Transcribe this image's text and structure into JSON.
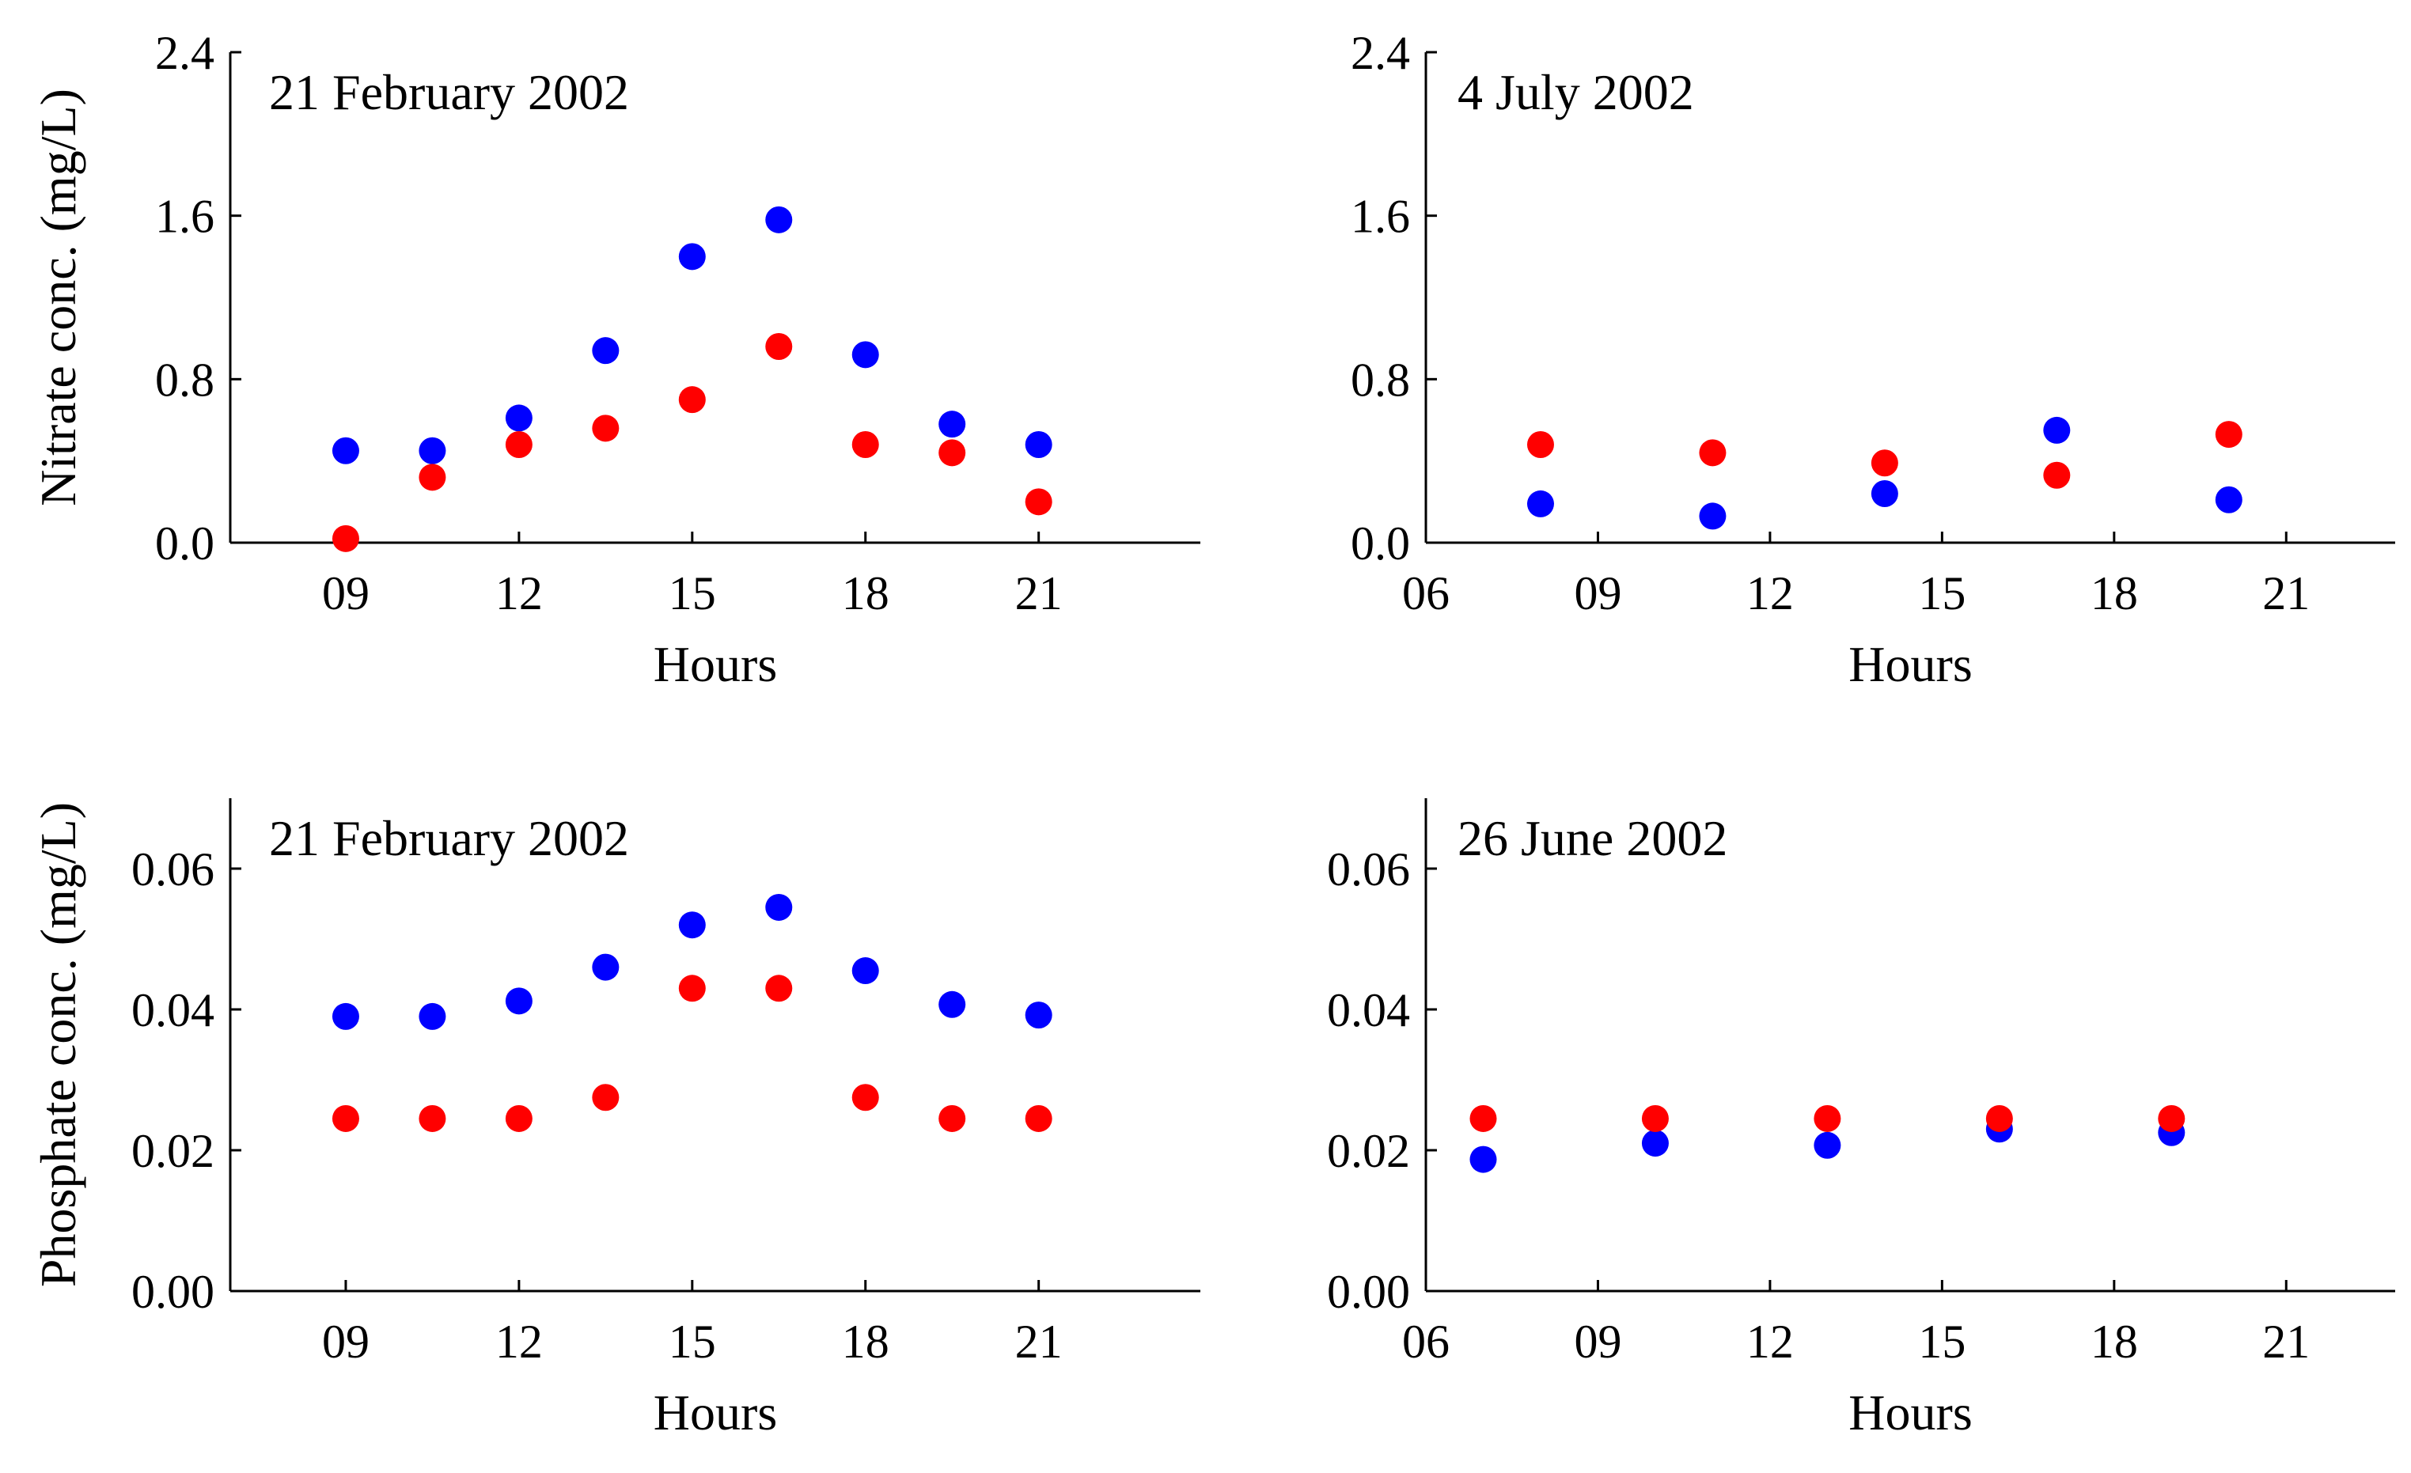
{
  "colors": {
    "series_a": "#0000ff",
    "series_b": "#ff0000"
  },
  "chart_data": [
    {
      "type": "scatter",
      "title": "21 February 2002",
      "xlabel": "Hours",
      "ylabel": "Nitrate conc. (mg/L)",
      "xlim": [
        7,
        23.8
      ],
      "ylim": [
        0,
        2.4
      ],
      "xticks": [
        9,
        12,
        15,
        18,
        21
      ],
      "xtick_labels": [
        "09",
        "12",
        "15",
        "18",
        "21"
      ],
      "yticks": [
        0.0,
        0.8,
        1.6,
        2.4
      ],
      "ytick_labels": [
        "0.0",
        "0.8",
        "1.6",
        "2.4"
      ],
      "series": [
        {
          "color": "#0000ff",
          "x": [
            9,
            10.5,
            12,
            13.5,
            15,
            16.5,
            18,
            19.5,
            21
          ],
          "y": [
            0.45,
            0.45,
            0.61,
            0.94,
            1.4,
            1.58,
            0.92,
            0.58,
            0.48
          ]
        },
        {
          "color": "#ff0000",
          "x": [
            9,
            10.5,
            12,
            13.5,
            15,
            16.5,
            18,
            19.5,
            21
          ],
          "y": [
            0.02,
            0.32,
            0.48,
            0.56,
            0.7,
            0.96,
            0.48,
            0.44,
            0.2
          ]
        }
      ]
    },
    {
      "type": "scatter",
      "title": "4 July 2002",
      "xlabel": "Hours",
      "ylabel": "",
      "xlim": [
        6,
        22.9
      ],
      "ylim": [
        0,
        2.4
      ],
      "xticks": [
        6,
        9,
        12,
        15,
        18,
        21
      ],
      "xtick_labels": [
        "06",
        "09",
        "12",
        "15",
        "18",
        "21"
      ],
      "yticks": [
        0.0,
        0.8,
        1.6,
        2.4
      ],
      "ytick_labels": [
        "0.0",
        "0.8",
        "1.6",
        "2.4"
      ],
      "series": [
        {
          "color": "#0000ff",
          "x": [
            8,
            11,
            14,
            17,
            20
          ],
          "y": [
            0.19,
            0.13,
            0.24,
            0.55,
            0.21
          ]
        },
        {
          "color": "#ff0000",
          "x": [
            8,
            11,
            14,
            17,
            20
          ],
          "y": [
            0.48,
            0.44,
            0.39,
            0.33,
            0.53
          ]
        }
      ]
    },
    {
      "type": "scatter",
      "title": "21 February 2002",
      "xlabel": "Hours",
      "ylabel": "Phosphate conc. (mg/L)",
      "xlim": [
        7,
        23.8
      ],
      "ylim": [
        0,
        0.07
      ],
      "xticks": [
        9,
        12,
        15,
        18,
        21
      ],
      "xtick_labels": [
        "09",
        "12",
        "15",
        "18",
        "21"
      ],
      "yticks": [
        0.0,
        0.02,
        0.04,
        0.06
      ],
      "ytick_labels": [
        "0.00",
        "0.02",
        "0.04",
        "0.06"
      ],
      "series": [
        {
          "color": "#0000ff",
          "x": [
            9,
            10.5,
            12,
            13.5,
            15,
            16.5,
            18,
            19.5,
            21
          ],
          "y": [
            0.039,
            0.039,
            0.0412,
            0.046,
            0.052,
            0.0545,
            0.0455,
            0.0407,
            0.0392
          ]
        },
        {
          "color": "#ff0000",
          "x": [
            9,
            10.5,
            12,
            13.5,
            15,
            16.5,
            18,
            19.5,
            21
          ],
          "y": [
            0.0245,
            0.0245,
            0.0245,
            0.0275,
            0.043,
            0.043,
            0.0275,
            0.0245,
            0.0245
          ]
        }
      ]
    },
    {
      "type": "scatter",
      "title": "26 June 2002",
      "xlabel": "Hours",
      "ylabel": "",
      "xlim": [
        6,
        22.9
      ],
      "ylim": [
        0,
        0.07
      ],
      "xticks": [
        6,
        9,
        12,
        15,
        18,
        21
      ],
      "xtick_labels": [
        "06",
        "09",
        "12",
        "15",
        "18",
        "21"
      ],
      "yticks": [
        0.0,
        0.02,
        0.04,
        0.06
      ],
      "ytick_labels": [
        "0.00",
        "0.02",
        "0.04",
        "0.06"
      ],
      "series": [
        {
          "color": "#0000ff",
          "x": [
            7,
            10,
            13,
            16,
            19
          ],
          "y": [
            0.0187,
            0.021,
            0.0207,
            0.023,
            0.0225
          ]
        },
        {
          "color": "#ff0000",
          "x": [
            7,
            10,
            13,
            16,
            19
          ],
          "y": [
            0.0245,
            0.0245,
            0.0245,
            0.0245,
            0.0245
          ]
        }
      ]
    }
  ]
}
